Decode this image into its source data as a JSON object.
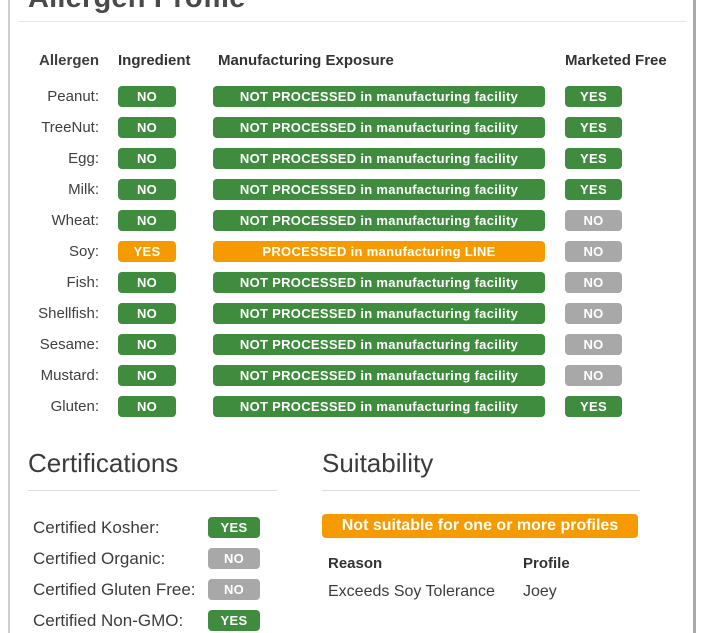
{
  "title": "Allergen Profile",
  "colors": {
    "green": "#3f8c3f",
    "orange": "#f59b00",
    "gray": "#a8a8a8"
  },
  "allergen_table": {
    "headers": {
      "allergen": "Allergen",
      "ingredient": "Ingredient",
      "exposure": "Manufacturing Exposure",
      "marketed_free": "Marketed Free"
    },
    "rows": [
      {
        "allergen": "Peanut:",
        "ingredient": "NO",
        "ingredient_color": "green",
        "exposure": "NOT PROCESSED in manufacturing facility",
        "exposure_color": "green",
        "marketed_free": "YES",
        "marketed_free_color": "green"
      },
      {
        "allergen": "TreeNut:",
        "ingredient": "NO",
        "ingredient_color": "green",
        "exposure": "NOT PROCESSED in manufacturing facility",
        "exposure_color": "green",
        "marketed_free": "YES",
        "marketed_free_color": "green"
      },
      {
        "allergen": "Egg:",
        "ingredient": "NO",
        "ingredient_color": "green",
        "exposure": "NOT PROCESSED in manufacturing facility",
        "exposure_color": "green",
        "marketed_free": "YES",
        "marketed_free_color": "green"
      },
      {
        "allergen": "Milk:",
        "ingredient": "NO",
        "ingredient_color": "green",
        "exposure": "NOT PROCESSED in manufacturing facility",
        "exposure_color": "green",
        "marketed_free": "YES",
        "marketed_free_color": "green"
      },
      {
        "allergen": "Wheat:",
        "ingredient": "NO",
        "ingredient_color": "green",
        "exposure": "NOT PROCESSED in manufacturing facility",
        "exposure_color": "green",
        "marketed_free": "NO",
        "marketed_free_color": "gray"
      },
      {
        "allergen": "Soy:",
        "ingredient": "YES",
        "ingredient_color": "orange",
        "exposure": "PROCESSED in manufacturing LINE",
        "exposure_color": "orange",
        "marketed_free": "NO",
        "marketed_free_color": "gray"
      },
      {
        "allergen": "Fish:",
        "ingredient": "NO",
        "ingredient_color": "green",
        "exposure": "NOT PROCESSED in manufacturing facility",
        "exposure_color": "green",
        "marketed_free": "NO",
        "marketed_free_color": "gray"
      },
      {
        "allergen": "Shellfish:",
        "ingredient": "NO",
        "ingredient_color": "green",
        "exposure": "NOT PROCESSED in manufacturing facility",
        "exposure_color": "green",
        "marketed_free": "NO",
        "marketed_free_color": "gray"
      },
      {
        "allergen": "Sesame:",
        "ingredient": "NO",
        "ingredient_color": "green",
        "exposure": "NOT PROCESSED in manufacturing facility",
        "exposure_color": "green",
        "marketed_free": "NO",
        "marketed_free_color": "gray"
      },
      {
        "allergen": "Mustard:",
        "ingredient": "NO",
        "ingredient_color": "green",
        "exposure": "NOT PROCESSED in manufacturing facility",
        "exposure_color": "green",
        "marketed_free": "NO",
        "marketed_free_color": "gray"
      },
      {
        "allergen": "Gluten:",
        "ingredient": "NO",
        "ingredient_color": "green",
        "exposure": "NOT PROCESSED in manufacturing facility",
        "exposure_color": "green",
        "marketed_free": "YES",
        "marketed_free_color": "green"
      }
    ]
  },
  "certifications": {
    "heading": "Certifications",
    "items": [
      {
        "label": "Certified Kosher:",
        "value": "YES",
        "color": "green"
      },
      {
        "label": "Certified Organic:",
        "value": "NO",
        "color": "gray"
      },
      {
        "label": "Certified Gluten Free:",
        "value": "NO",
        "color": "gray"
      },
      {
        "label": "Certified Non-GMO:",
        "value": "YES",
        "color": "green"
      }
    ]
  },
  "suitability": {
    "heading": "Suitability",
    "banner": "Not suitable for one or more profiles",
    "headers": {
      "reason": "Reason",
      "profile": "Profile"
    },
    "rows": [
      {
        "reason": "Exceeds Soy Tolerance",
        "profile": "Joey"
      }
    ]
  }
}
